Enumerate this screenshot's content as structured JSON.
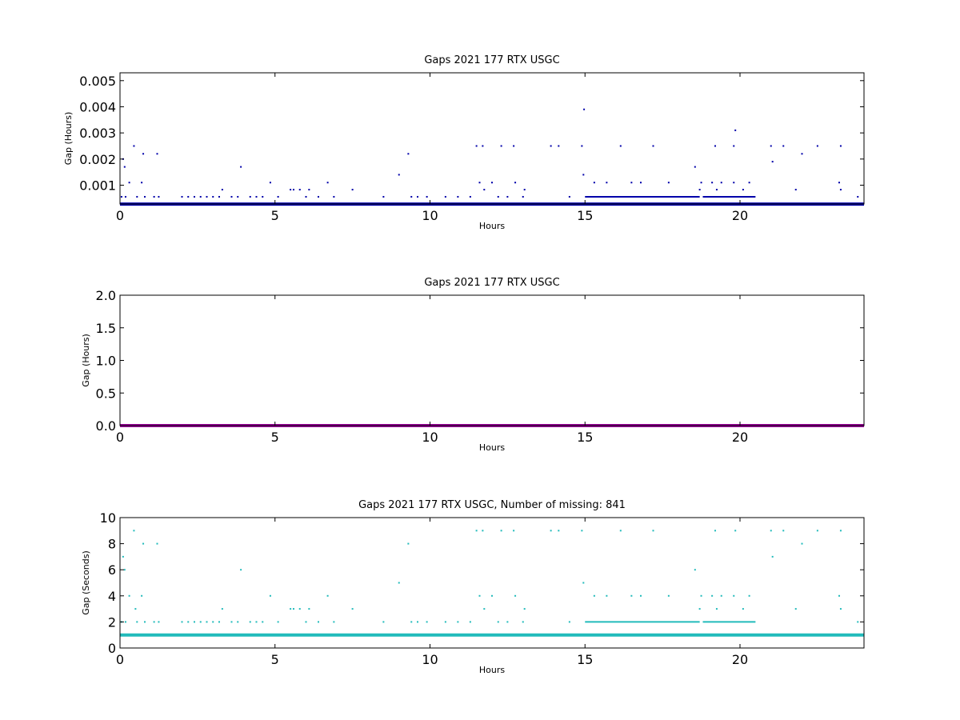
{
  "colors": {
    "top": "#0000aa",
    "middle": "#990099",
    "bottom": "#22bbbb"
  },
  "chart_data": [
    {
      "type": "scatter",
      "title": "Gaps 2021 177 RTX  USGC",
      "xlabel": "Hours",
      "ylabel": "Gap (Hours)",
      "xlim": [
        0,
        24
      ],
      "ylim": [
        0.00028,
        0.0053
      ],
      "xticks": [
        "0",
        "5",
        "10",
        "15",
        "20"
      ],
      "xtick_values": [
        0,
        5,
        10,
        15,
        20
      ],
      "yticks": [
        "0.001",
        "0.002",
        "0.003",
        "0.004",
        "0.005"
      ],
      "ytick_values": [
        0.001,
        0.002,
        0.003,
        0.004,
        0.005
      ],
      "baseline": 0.000278,
      "series": [
        {
          "color": "#0000aa",
          "points": [
            [
              0.05,
              0.000556
            ],
            [
              0.1,
              0.002
            ],
            [
              0.15,
              0.0017
            ],
            [
              0.18,
              0.000556
            ],
            [
              0.3,
              0.0011
            ],
            [
              0.45,
              0.0025
            ],
            [
              0.55,
              0.000556
            ],
            [
              0.7,
              0.0011
            ],
            [
              0.75,
              0.0022
            ],
            [
              0.8,
              0.000556
            ],
            [
              1.1,
              0.000556
            ],
            [
              1.2,
              0.0022
            ],
            [
              1.25,
              0.000556
            ],
            [
              2.0,
              0.000556
            ],
            [
              2.2,
              0.000556
            ],
            [
              2.4,
              0.000556
            ],
            [
              2.6,
              0.000556
            ],
            [
              2.8,
              0.000556
            ],
            [
              3.0,
              0.000556
            ],
            [
              3.2,
              0.000556
            ],
            [
              3.3,
              0.00083
            ],
            [
              3.6,
              0.000556
            ],
            [
              3.8,
              0.000556
            ],
            [
              3.9,
              0.0017
            ],
            [
              4.2,
              0.000556
            ],
            [
              4.4,
              0.000556
            ],
            [
              4.6,
              0.000556
            ],
            [
              4.85,
              0.0011
            ],
            [
              5.1,
              0.000556
            ],
            [
              5.5,
              0.00083
            ],
            [
              5.6,
              0.00083
            ],
            [
              5.8,
              0.00083
            ],
            [
              6.0,
              0.000556
            ],
            [
              6.1,
              0.00083
            ],
            [
              6.4,
              0.000556
            ],
            [
              6.7,
              0.0011
            ],
            [
              6.9,
              0.000556
            ],
            [
              7.5,
              0.00083
            ],
            [
              8.5,
              0.000556
            ],
            [
              9.0,
              0.0014
            ],
            [
              9.3,
              0.0022
            ],
            [
              9.4,
              0.000556
            ],
            [
              9.6,
              0.000556
            ],
            [
              9.9,
              0.000556
            ],
            [
              10.5,
              0.000556
            ],
            [
              10.9,
              0.000556
            ],
            [
              11.3,
              0.000556
            ],
            [
              11.5,
              0.0025
            ],
            [
              11.6,
              0.0011
            ],
            [
              11.7,
              0.0025
            ],
            [
              11.75,
              0.00083
            ],
            [
              12.0,
              0.0011
            ],
            [
              12.2,
              0.000556
            ],
            [
              12.3,
              0.0025
            ],
            [
              12.5,
              0.000556
            ],
            [
              12.7,
              0.0025
            ],
            [
              12.75,
              0.0011
            ],
            [
              13.0,
              0.000556
            ],
            [
              13.05,
              0.00083
            ],
            [
              13.9,
              0.0025
            ],
            [
              14.15,
              0.0025
            ],
            [
              14.5,
              0.000556
            ],
            [
              14.9,
              0.0025
            ],
            [
              14.95,
              0.0014
            ],
            [
              14.97,
              0.0039
            ],
            [
              15.3,
              0.0011
            ],
            [
              15.7,
              0.0011
            ],
            [
              16.15,
              0.0025
            ],
            [
              16.5,
              0.0011
            ],
            [
              16.8,
              0.0011
            ],
            [
              17.2,
              0.0025
            ],
            [
              17.7,
              0.0011
            ],
            [
              18.55,
              0.0017
            ],
            [
              18.7,
              0.00083
            ],
            [
              18.75,
              0.0011
            ],
            [
              19.1,
              0.0011
            ],
            [
              19.2,
              0.0025
            ],
            [
              19.25,
              0.00083
            ],
            [
              19.4,
              0.0011
            ],
            [
              19.8,
              0.0011
            ],
            [
              19.8,
              0.0025
            ],
            [
              19.85,
              0.0031
            ],
            [
              20.1,
              0.00083
            ],
            [
              20.3,
              0.0011
            ],
            [
              21.0,
              0.0025
            ],
            [
              21.05,
              0.0019
            ],
            [
              21.4,
              0.0025
            ],
            [
              21.8,
              0.00083
            ],
            [
              22.0,
              0.0022
            ],
            [
              22.5,
              0.0025
            ],
            [
              23.2,
              0.0011
            ],
            [
              23.25,
              0.0025
            ],
            [
              23.25,
              0.00083
            ],
            [
              23.8,
              0.000556
            ]
          ],
          "dense_ranges": [
            [
              15.0,
              18.7
            ],
            [
              18.8,
              20.5
            ]
          ],
          "dense_value": 0.000556
        }
      ]
    },
    {
      "type": "scatter",
      "title": "Gaps 2021 177 RTX  USGC",
      "xlabel": "Hours",
      "ylabel": "Gap (Hours)",
      "xlim": [
        0,
        24
      ],
      "ylim": [
        0,
        2.0
      ],
      "xticks": [
        "0",
        "5",
        "10",
        "15",
        "20"
      ],
      "xtick_values": [
        0,
        5,
        10,
        15,
        20
      ],
      "yticks": [
        "0.0",
        "0.5",
        "1.0",
        "1.5",
        "2.0"
      ],
      "ytick_values": [
        0,
        0.5,
        1.0,
        1.5,
        2.0
      ],
      "baseline": 0.0003,
      "series": [
        {
          "color": "#990099",
          "points": [],
          "dense_ranges": [],
          "dense_value": 0
        }
      ]
    },
    {
      "type": "scatter",
      "title": "Gaps 2021 177 RTX  USGC, Number of missing: 841",
      "xlabel": "Hours",
      "ylabel": "Gap (Seconds)",
      "xlim": [
        0,
        24
      ],
      "ylim": [
        0,
        10
      ],
      "xticks": [
        "0",
        "5",
        "10",
        "15",
        "20"
      ],
      "xtick_values": [
        0,
        5,
        10,
        15,
        20
      ],
      "yticks": [
        "0",
        "2",
        "4",
        "6",
        "8",
        "10"
      ],
      "ytick_values": [
        0,
        2,
        4,
        6,
        8,
        10
      ],
      "baseline": 1,
      "series": [
        {
          "color": "#22bbbb",
          "points": [
            [
              0.05,
              2
            ],
            [
              0.1,
              7
            ],
            [
              0.15,
              6
            ],
            [
              0.18,
              2
            ],
            [
              0.3,
              4
            ],
            [
              0.45,
              9
            ],
            [
              0.5,
              3
            ],
            [
              0.55,
              2
            ],
            [
              0.7,
              4
            ],
            [
              0.75,
              8
            ],
            [
              0.8,
              2
            ],
            [
              1.1,
              2
            ],
            [
              1.2,
              8
            ],
            [
              1.25,
              2
            ],
            [
              2.0,
              2
            ],
            [
              2.2,
              2
            ],
            [
              2.4,
              2
            ],
            [
              2.6,
              2
            ],
            [
              2.8,
              2
            ],
            [
              3.0,
              2
            ],
            [
              3.2,
              2
            ],
            [
              3.3,
              3
            ],
            [
              3.6,
              2
            ],
            [
              3.8,
              2
            ],
            [
              3.9,
              6
            ],
            [
              4.2,
              2
            ],
            [
              4.4,
              2
            ],
            [
              4.6,
              2
            ],
            [
              4.85,
              4
            ],
            [
              5.1,
              2
            ],
            [
              5.5,
              3
            ],
            [
              5.6,
              3
            ],
            [
              5.8,
              3
            ],
            [
              6.0,
              2
            ],
            [
              6.1,
              3
            ],
            [
              6.4,
              2
            ],
            [
              6.7,
              4
            ],
            [
              6.9,
              2
            ],
            [
              7.5,
              3
            ],
            [
              8.5,
              2
            ],
            [
              9.0,
              5
            ],
            [
              9.3,
              8
            ],
            [
              9.4,
              2
            ],
            [
              9.6,
              2
            ],
            [
              9.9,
              2
            ],
            [
              10.5,
              2
            ],
            [
              10.9,
              2
            ],
            [
              11.3,
              2
            ],
            [
              11.5,
              9
            ],
            [
              11.6,
              4
            ],
            [
              11.7,
              9
            ],
            [
              11.75,
              3
            ],
            [
              12.0,
              4
            ],
            [
              12.2,
              2
            ],
            [
              12.3,
              9
            ],
            [
              12.5,
              2
            ],
            [
              12.7,
              9
            ],
            [
              12.75,
              4
            ],
            [
              13.0,
              2
            ],
            [
              13.05,
              3
            ],
            [
              13.9,
              9
            ],
            [
              14.15,
              9
            ],
            [
              14.5,
              2
            ],
            [
              14.9,
              9
            ],
            [
              14.95,
              5
            ],
            [
              15.3,
              4
            ],
            [
              15.7,
              4
            ],
            [
              16.15,
              9
            ],
            [
              16.5,
              4
            ],
            [
              16.8,
              4
            ],
            [
              17.2,
              9
            ],
            [
              17.7,
              4
            ],
            [
              18.55,
              6
            ],
            [
              18.7,
              3
            ],
            [
              18.75,
              4
            ],
            [
              19.1,
              4
            ],
            [
              19.2,
              9
            ],
            [
              19.25,
              3
            ],
            [
              19.4,
              4
            ],
            [
              19.8,
              4
            ],
            [
              19.85,
              9
            ],
            [
              20.1,
              3
            ],
            [
              20.3,
              4
            ],
            [
              21.0,
              9
            ],
            [
              21.05,
              7
            ],
            [
              21.4,
              9
            ],
            [
              21.8,
              3
            ],
            [
              22.0,
              8
            ],
            [
              22.5,
              9
            ],
            [
              23.2,
              4
            ],
            [
              23.25,
              9
            ],
            [
              23.25,
              3
            ],
            [
              23.8,
              2
            ]
          ],
          "dense_ranges": [
            [
              15.0,
              18.7
            ],
            [
              18.8,
              20.5
            ]
          ],
          "dense_value": 2
        }
      ]
    }
  ]
}
